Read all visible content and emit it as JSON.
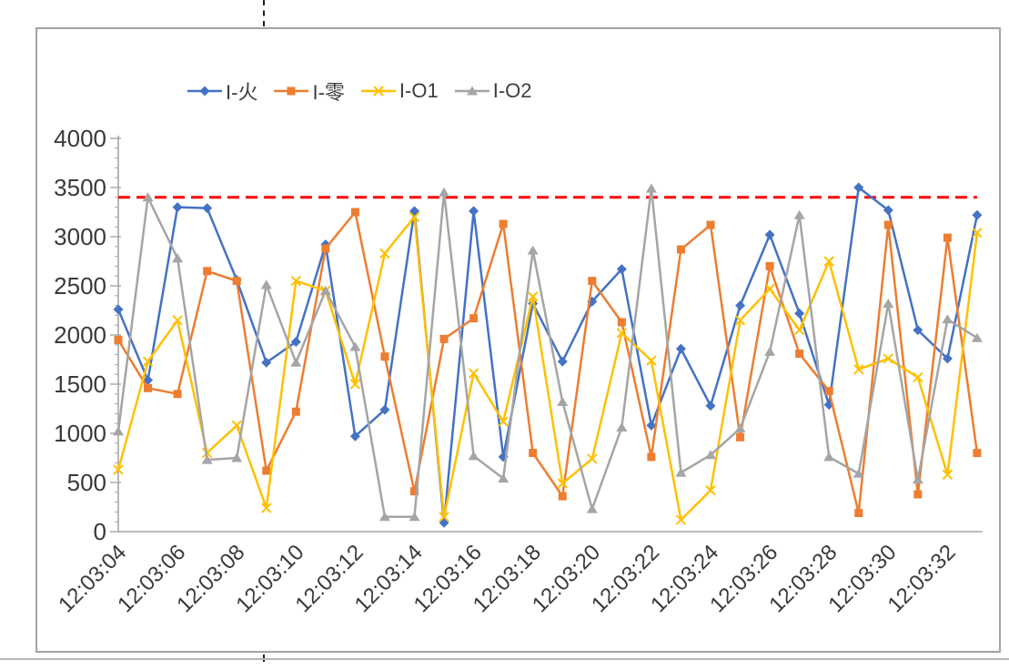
{
  "chart_data": {
    "type": "line",
    "title": "",
    "xlabel": "",
    "ylabel": "",
    "ylim": [
      0,
      4000
    ],
    "y_tick_step": 500,
    "y_minor_tick_step": 100,
    "y_tick_labels": [
      "0",
      "500",
      "1000",
      "1500",
      "2000",
      "2500",
      "3000",
      "3500",
      "4000"
    ],
    "x_tick_labels": [
      "12:03:04",
      "12:03:06",
      "12:03:08",
      "12:03:10",
      "12:03:12",
      "12:03:14",
      "12:03:16",
      "12:03:18",
      "12:03:20",
      "12:03:22",
      "12:03:24",
      "12:03:26",
      "12:03:28",
      "12:03:30",
      "12:03:32"
    ],
    "x": [
      "12:03:04",
      "12:03:05",
      "12:03:06",
      "12:03:07",
      "12:03:08",
      "12:03:09",
      "12:03:10",
      "12:03:11",
      "12:03:12",
      "12:03:13",
      "12:03:14",
      "12:03:15",
      "12:03:16",
      "12:03:17",
      "12:03:18",
      "12:03:19",
      "12:03:20",
      "12:03:21",
      "12:03:22",
      "12:03:23",
      "12:03:24",
      "12:03:25",
      "12:03:26",
      "12:03:27",
      "12:03:28",
      "12:03:29",
      "12:03:30",
      "12:03:31",
      "12:03:32",
      "12:03:33"
    ],
    "legend_position": "top",
    "grid": false,
    "threshold_line": {
      "value": 3400,
      "color": "#FF0000",
      "style": "dashed"
    },
    "series": [
      {
        "name": "I-火",
        "color": "#4472C4",
        "marker": "diamond",
        "values": [
          2260,
          1540,
          3300,
          3290,
          2560,
          1720,
          1930,
          2920,
          970,
          1240,
          3260,
          90,
          3260,
          760,
          2320,
          1730,
          2340,
          2670,
          1080,
          1860,
          1280,
          2300,
          3020,
          2220,
          1290,
          3500,
          3270,
          2050,
          1760,
          3220
        ]
      },
      {
        "name": "I-零",
        "color": "#ED7D31",
        "marker": "square",
        "values": [
          1950,
          1460,
          1400,
          2650,
          2550,
          620,
          1220,
          2880,
          3250,
          1780,
          410,
          1960,
          2170,
          3130,
          800,
          360,
          2550,
          2130,
          760,
          2870,
          3120,
          960,
          2700,
          1810,
          1430,
          190,
          3120,
          380,
          2990,
          800
        ]
      },
      {
        "name": "I-O1",
        "color": "#FFC000",
        "marker": "x",
        "values": [
          630,
          1730,
          2150,
          800,
          1080,
          240,
          2550,
          2450,
          1500,
          2830,
          3200,
          150,
          1610,
          1120,
          2390,
          490,
          740,
          2020,
          1740,
          120,
          420,
          2150,
          2470,
          2050,
          2750,
          1650,
          1760,
          1570,
          580,
          3040
        ]
      },
      {
        "name": "I-O2",
        "color": "#A5A5A5",
        "marker": "triangle",
        "values": [
          1020,
          3400,
          2780,
          730,
          750,
          2510,
          1720,
          2450,
          1880,
          150,
          150,
          3450,
          770,
          540,
          2860,
          1320,
          230,
          1060,
          3490,
          600,
          780,
          1050,
          1830,
          3220,
          760,
          590,
          2320,
          530,
          2160,
          1970
        ]
      }
    ]
  }
}
